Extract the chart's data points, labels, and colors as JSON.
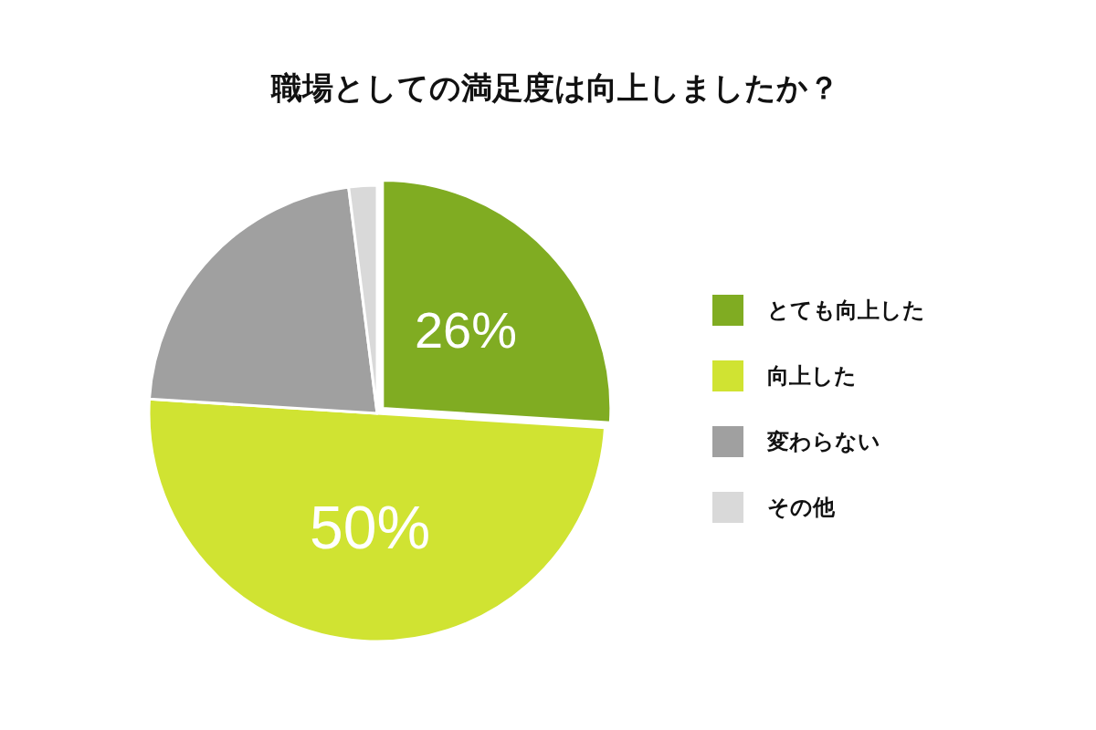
{
  "chart_data": {
    "type": "pie",
    "title": "職場としての満足度は向上しましたか？",
    "categories": [
      "とても向上した",
      "向上した",
      "変わらない",
      "その他"
    ],
    "values": [
      26,
      50,
      22,
      2
    ],
    "colors": [
      "#80ac22",
      "#d0e332",
      "#a0a0a0",
      "#d9d9d9"
    ],
    "value_labels": [
      "26%",
      "50%",
      null,
      null
    ],
    "legend": "right"
  }
}
